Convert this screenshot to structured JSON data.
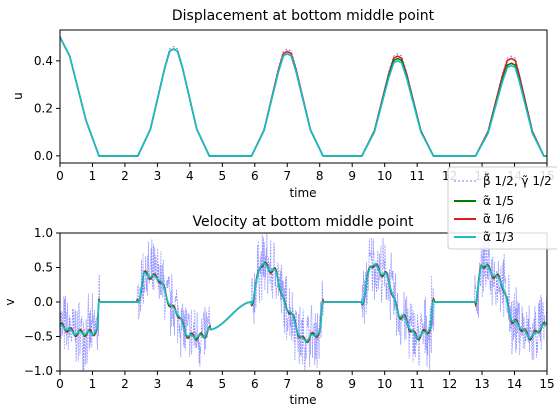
{
  "chart_data": [
    {
      "type": "line",
      "title": "Displacement at bottom middle point",
      "xlabel": "time",
      "ylabel": "u",
      "xlim": [
        0,
        15
      ],
      "ylim": [
        -0.03,
        0.53
      ],
      "xticks": [
        "0",
        "1",
        "2",
        "3",
        "4",
        "5",
        "6",
        "7",
        "8",
        "9",
        "10",
        "11",
        "12",
        "13",
        "14",
        "15"
      ],
      "yticks": [
        "0.0",
        "0.2",
        "0.4"
      ],
      "peaks": {
        "t": [
          3.5,
          7.0,
          10.4,
          13.9
        ],
        "beta_gamma_half": [
          0.46,
          0.45,
          0.43,
          0.42
        ],
        "alpha_1_5": [
          0.45,
          0.43,
          0.41,
          0.39
        ],
        "alpha_1_6": [
          0.45,
          0.44,
          0.42,
          0.41
        ],
        "alpha_1_3": [
          0.45,
          0.43,
          0.4,
          0.38
        ]
      },
      "flat_intervals": [
        [
          1.2,
          2.4
        ],
        [
          4.6,
          5.9
        ],
        [
          8.1,
          9.3
        ],
        [
          11.5,
          12.8
        ],
        [
          14.9,
          15.0
        ]
      ],
      "start_value": 0.5,
      "grid": false
    },
    {
      "type": "line",
      "title": "Velocity at bottom middle point",
      "xlabel": "time",
      "ylabel": "v",
      "xlim": [
        0,
        15
      ],
      "ylim": [
        -1.0,
        1.0
      ],
      "xticks": [
        "0",
        "1",
        "2",
        "3",
        "4",
        "5",
        "6",
        "7",
        "8",
        "9",
        "10",
        "11",
        "12",
        "13",
        "14",
        "15"
      ],
      "yticks": [
        "−1.0",
        "−0.5",
        "0.0",
        "0.5",
        "1.0"
      ],
      "smooth_profile": {
        "t": [
          0,
          0.5,
          1.0,
          1.15,
          1.2,
          2.4,
          2.6,
          3.0,
          3.5,
          4.0,
          4.4,
          4.6,
          5.9,
          6.2,
          6.6,
          7.0,
          7.5,
          8.0,
          8.1,
          9.3,
          9.6,
          10.0,
          10.5,
          11.0,
          11.4,
          11.5,
          12.8,
          13.0,
          13.5,
          14.0,
          14.5,
          14.9,
          15.0
        ],
        "v": [
          -0.35,
          -0.45,
          -0.45,
          -0.4,
          0.0,
          0.0,
          0.4,
          0.35,
          -0.1,
          -0.5,
          -0.5,
          -0.4,
          0.0,
          0.55,
          0.45,
          -0.1,
          -0.55,
          -0.45,
          0.0,
          0.0,
          0.55,
          0.4,
          -0.2,
          -0.5,
          -0.4,
          0.0,
          0.0,
          0.55,
          0.35,
          -0.3,
          -0.5,
          -0.35,
          -0.3
        ]
      },
      "noise_amplitude_beta_gamma_half": 0.6,
      "grid": false
    }
  ],
  "legend": {
    "placement": "right, between panels",
    "entries": [
      {
        "label": "β̃ 1/2, γ̃ 1/2",
        "color": "#7b7bff",
        "style": "dotted"
      },
      {
        "label": "α̃ 1/5",
        "color": "#008000",
        "style": "solid"
      },
      {
        "label": "α̃ 1/6",
        "color": "#e31a1c",
        "style": "solid"
      },
      {
        "label": "α̃ 1/3",
        "color": "#17becf",
        "style": "solid"
      }
    ]
  },
  "colors": {
    "beta_gamma_half": "#7b7bff",
    "alpha_1_5": "#008000",
    "alpha_1_6": "#e31a1c",
    "alpha_1_3": "#17becf"
  }
}
